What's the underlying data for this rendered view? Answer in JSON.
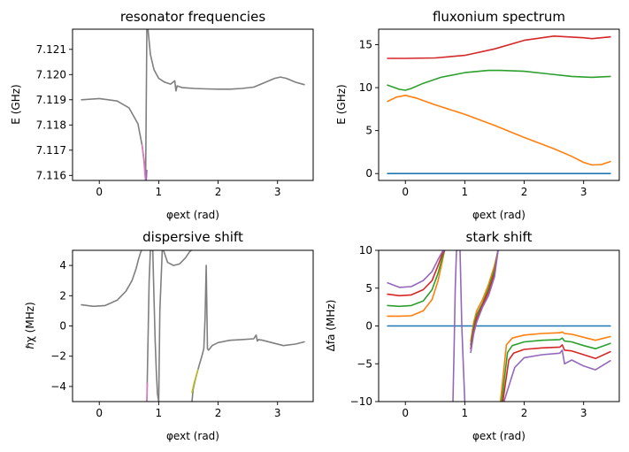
{
  "chart_data": [
    {
      "type": "line",
      "title": "resonator frequencies",
      "xlabel": "φext (rad)",
      "ylabel": "E (GHz)",
      "xlim": [
        -0.45,
        3.6
      ],
      "ylim": [
        7.1158,
        7.1218
      ],
      "xticks": [
        "0",
        "1",
        "2",
        "3"
      ],
      "yticks": [
        "7.116",
        "7.117",
        "7.118",
        "7.119",
        "7.120",
        "7.121"
      ],
      "grid": false,
      "series": [
        {
          "color": "#7f7f7f",
          "x": [
            -0.3,
            0,
            0.3,
            0.5,
            0.65,
            0.72,
            0.76,
            0.78,
            0.8,
            0.82,
            0.86,
            0.92,
            1.0,
            1.1,
            1.2,
            1.27,
            1.29,
            1.31,
            1.4,
            1.6,
            1.8,
            2.0,
            2.2,
            2.4,
            2.6,
            2.8,
            2.95,
            3.05,
            3.15,
            3.3,
            3.45
          ],
          "y": [
            7.119,
            7.11905,
            7.11895,
            7.11868,
            7.11805,
            7.1172,
            7.1165,
            7.1158,
            7.1218,
            7.1218,
            7.1208,
            7.1202,
            7.11985,
            7.1197,
            7.11962,
            7.11975,
            7.11935,
            7.11955,
            7.11948,
            7.11945,
            7.11943,
            7.11942,
            7.11942,
            7.11945,
            7.1195,
            7.1197,
            7.11985,
            7.1199,
            7.11985,
            7.1197,
            7.1196
          ]
        },
        {
          "color": "#e377c2",
          "x": [
            0.72,
            0.75,
            0.77,
            0.78
          ],
          "y": [
            7.1172,
            7.1166,
            7.116,
            7.1158
          ]
        },
        {
          "color": "#9467bd",
          "x": [
            0.79,
            0.8
          ],
          "y": [
            7.1158,
            7.1162
          ]
        }
      ]
    },
    {
      "type": "line",
      "title": "fluxonium spectrum",
      "xlabel": "φext (rad)",
      "ylabel": "E (GHz)",
      "xlim": [
        -0.45,
        3.6
      ],
      "ylim": [
        -0.8,
        16.8
      ],
      "xticks": [
        "0",
        "1",
        "2",
        "3"
      ],
      "yticks": [
        "0",
        "5",
        "10",
        "15"
      ],
      "grid": false,
      "series": [
        {
          "color": "#1f77b4",
          "x": [
            -0.3,
            3.45
          ],
          "y": [
            0,
            0
          ]
        },
        {
          "color": "#ff7f0e",
          "x": [
            -0.3,
            -0.15,
            0,
            0.2,
            0.5,
            1.0,
            1.5,
            2.0,
            2.5,
            2.8,
            3.0,
            3.14,
            3.3,
            3.45
          ],
          "y": [
            8.4,
            8.9,
            9.1,
            8.75,
            8.0,
            6.9,
            5.6,
            4.2,
            2.9,
            2.0,
            1.3,
            1.0,
            1.05,
            1.4
          ]
        },
        {
          "color": "#2ca02c",
          "x": [
            -0.3,
            -0.1,
            0,
            0.1,
            0.3,
            0.6,
            1.0,
            1.4,
            1.6,
            2.0,
            2.4,
            2.8,
            3.14,
            3.45
          ],
          "y": [
            10.3,
            9.8,
            9.7,
            9.9,
            10.5,
            11.2,
            11.75,
            12.0,
            12.0,
            11.9,
            11.6,
            11.3,
            11.2,
            11.3
          ]
        },
        {
          "color": "#d62728",
          "x": [
            -0.3,
            0,
            0.5,
            1.0,
            1.5,
            2.0,
            2.5,
            3.0,
            3.14,
            3.45
          ],
          "y": [
            13.4,
            13.4,
            13.45,
            13.75,
            14.5,
            15.5,
            16.0,
            15.8,
            15.7,
            15.9
          ]
        }
      ]
    },
    {
      "type": "line",
      "title": "dispersive shift",
      "xlabel": "φext (rad)",
      "ylabel": "ℏχ (MHz)",
      "xlim": [
        -0.45,
        3.6
      ],
      "ylim": [
        -5,
        5
      ],
      "xticks": [
        "0",
        "1",
        "2",
        "3"
      ],
      "yticks": [
        "−4",
        "−2",
        "0",
        "2",
        "4"
      ],
      "grid": false,
      "series": [
        {
          "color": "#7f7f7f",
          "x": [
            -0.3,
            -0.1,
            0.1,
            0.3,
            0.45,
            0.55,
            0.62,
            0.66,
            0.69,
            0.71
          ],
          "y": [
            1.4,
            1.3,
            1.35,
            1.7,
            2.3,
            3.0,
            3.8,
            4.4,
            4.8,
            5.0
          ]
        },
        {
          "color": "#7f7f7f",
          "x": [
            0.8,
            0.82,
            0.84,
            0.86,
            0.88
          ],
          "y": [
            -5,
            -1,
            3,
            5,
            5
          ]
        },
        {
          "color": "#7f7f7f",
          "x": [
            0.9,
            0.92,
            0.94,
            0.96,
            0.98,
            1.0
          ],
          "y": [
            5,
            2,
            -1,
            -3,
            -4.5,
            -5
          ]
        },
        {
          "color": "#7f7f7f",
          "x": [
            1.0,
            1.02,
            1.06
          ],
          "y": [
            -5,
            1,
            5
          ]
        },
        {
          "color": "#7f7f7f",
          "x": [
            1.08,
            1.15,
            1.25,
            1.35,
            1.45,
            1.52,
            1.55
          ],
          "y": [
            5,
            4.2,
            4.0,
            4.1,
            4.5,
            4.9,
            5.0
          ]
        },
        {
          "color": "#7f7f7f",
          "x": [
            1.56,
            1.58,
            1.62,
            1.68,
            1.72,
            1.76,
            1.78,
            1.8,
            1.82,
            1.84,
            1.9,
            2.0,
            2.2,
            2.4,
            2.6,
            2.64,
            2.66,
            2.68,
            2.75,
            2.9,
            3.1,
            3.3,
            3.45
          ],
          "y": [
            -5,
            -4.2,
            -3.5,
            -2.6,
            -2.1,
            -1.5,
            0.5,
            4.0,
            -1.5,
            -1.6,
            -1.3,
            -1.1,
            -0.95,
            -0.9,
            -0.85,
            -0.6,
            -1.0,
            -0.9,
            -0.95,
            -1.1,
            -1.3,
            -1.2,
            -1.05
          ]
        },
        {
          "color": "#e377c2",
          "x": [
            0.8,
            0.81
          ],
          "y": [
            -5,
            -3.8
          ]
        },
        {
          "color": "#bcbd22",
          "x": [
            1.56,
            1.6,
            1.66
          ],
          "y": [
            -4.4,
            -3.7,
            -2.9
          ]
        }
      ]
    },
    {
      "type": "line",
      "title": "stark shift",
      "xlabel": "φext (rad)",
      "ylabel": "Δfa (MHz)",
      "xlim": [
        -0.45,
        3.6
      ],
      "ylim": [
        -10,
        10
      ],
      "xticks": [
        "0",
        "1",
        "2",
        "3"
      ],
      "yticks": [
        "−10",
        "−5",
        "0",
        "5",
        "10"
      ],
      "grid": false,
      "series": [
        {
          "color": "#1f77b4",
          "x": [
            -0.3,
            3.45
          ],
          "y": [
            0,
            0
          ]
        },
        {
          "color": "#ff7f0e",
          "x": [
            -0.3,
            -0.1,
            0.1,
            0.3,
            0.45,
            0.55,
            0.62,
            0.66
          ],
          "y": [
            1.3,
            1.3,
            1.35,
            2.0,
            3.5,
            6.0,
            8.5,
            10
          ]
        },
        {
          "color": "#ff7f0e",
          "x": [
            1.1,
            1.15,
            1.2,
            1.3,
            1.4,
            1.5,
            1.56
          ],
          "y": [
            -2.0,
            0.5,
            2.0,
            3.5,
            5.5,
            8.0,
            10
          ]
        },
        {
          "color": "#ff7f0e",
          "x": [
            1.6,
            1.7,
            1.8,
            2.0,
            2.3,
            2.6,
            2.64,
            2.68,
            2.8,
            3.0,
            3.2,
            3.45
          ],
          "y": [
            -10,
            -2.5,
            -1.6,
            -1.2,
            -1.0,
            -0.9,
            -0.8,
            -1.0,
            -1.1,
            -1.5,
            -1.9,
            -1.4
          ]
        },
        {
          "color": "#2ca02c",
          "x": [
            -0.3,
            -0.1,
            0.1,
            0.3,
            0.45,
            0.55,
            0.62,
            0.66
          ],
          "y": [
            2.7,
            2.6,
            2.7,
            3.3,
            4.8,
            7.0,
            9.0,
            10
          ]
        },
        {
          "color": "#2ca02c",
          "x": [
            1.1,
            1.15,
            1.2,
            1.3,
            1.4,
            1.5,
            1.56
          ],
          "y": [
            -2.5,
            0.0,
            1.5,
            3.0,
            5.0,
            7.5,
            10
          ]
        },
        {
          "color": "#2ca02c",
          "x": [
            1.62,
            1.72,
            1.8,
            2.0,
            2.3,
            2.6,
            2.64,
            2.68,
            2.8,
            3.0,
            3.2,
            3.45
          ],
          "y": [
            -10,
            -3.5,
            -2.6,
            -2.1,
            -1.9,
            -1.8,
            -1.6,
            -2.0,
            -2.1,
            -2.6,
            -3.0,
            -2.3
          ]
        },
        {
          "color": "#d62728",
          "x": [
            -0.3,
            -0.1,
            0.1,
            0.3,
            0.45,
            0.55,
            0.62,
            0.66
          ],
          "y": [
            4.2,
            4.0,
            4.1,
            4.8,
            6.0,
            8.0,
            9.5,
            10
          ]
        },
        {
          "color": "#d62728",
          "x": [
            1.1,
            1.15,
            1.2,
            1.3,
            1.4,
            1.5,
            1.56
          ],
          "y": [
            -3.0,
            -0.5,
            1.0,
            2.8,
            4.5,
            7.0,
            10
          ]
        },
        {
          "color": "#d62728",
          "x": [
            1.64,
            1.74,
            1.82,
            2.0,
            2.3,
            2.6,
            2.64,
            2.68,
            2.8,
            3.0,
            3.2,
            3.45
          ],
          "y": [
            -10,
            -4.5,
            -3.6,
            -3.1,
            -2.9,
            -2.8,
            -2.5,
            -3.2,
            -3.3,
            -3.8,
            -4.3,
            -3.4
          ]
        },
        {
          "color": "#9467bd",
          "x": [
            -0.3,
            -0.1,
            0.1,
            0.3,
            0.45,
            0.55,
            0.62,
            0.66
          ],
          "y": [
            5.7,
            5.1,
            5.2,
            6.0,
            7.2,
            8.8,
            9.8,
            10
          ]
        },
        {
          "color": "#9467bd",
          "x": [
            0.8,
            0.82,
            0.84,
            0.86,
            0.88
          ],
          "y": [
            -10,
            -3,
            5,
            10,
            10
          ]
        },
        {
          "color": "#9467bd",
          "x": [
            0.92,
            0.95,
            0.98,
            1.0
          ],
          "y": [
            10,
            0,
            -6,
            -10
          ]
        },
        {
          "color": "#9467bd",
          "x": [
            1.1,
            1.15,
            1.2,
            1.3,
            1.4,
            1.5,
            1.56
          ],
          "y": [
            -3.5,
            -1.0,
            0.5,
            2.5,
            4.0,
            6.5,
            10
          ]
        },
        {
          "color": "#9467bd",
          "x": [
            1.66,
            1.76,
            1.84,
            2.0,
            2.3,
            2.6,
            2.64,
            2.68,
            2.8,
            3.0,
            3.2,
            3.45
          ],
          "y": [
            -10,
            -7.5,
            -5.5,
            -4.2,
            -3.8,
            -3.6,
            -3.2,
            -5.0,
            -4.5,
            -5.3,
            -5.8,
            -4.6
          ]
        }
      ]
    }
  ]
}
